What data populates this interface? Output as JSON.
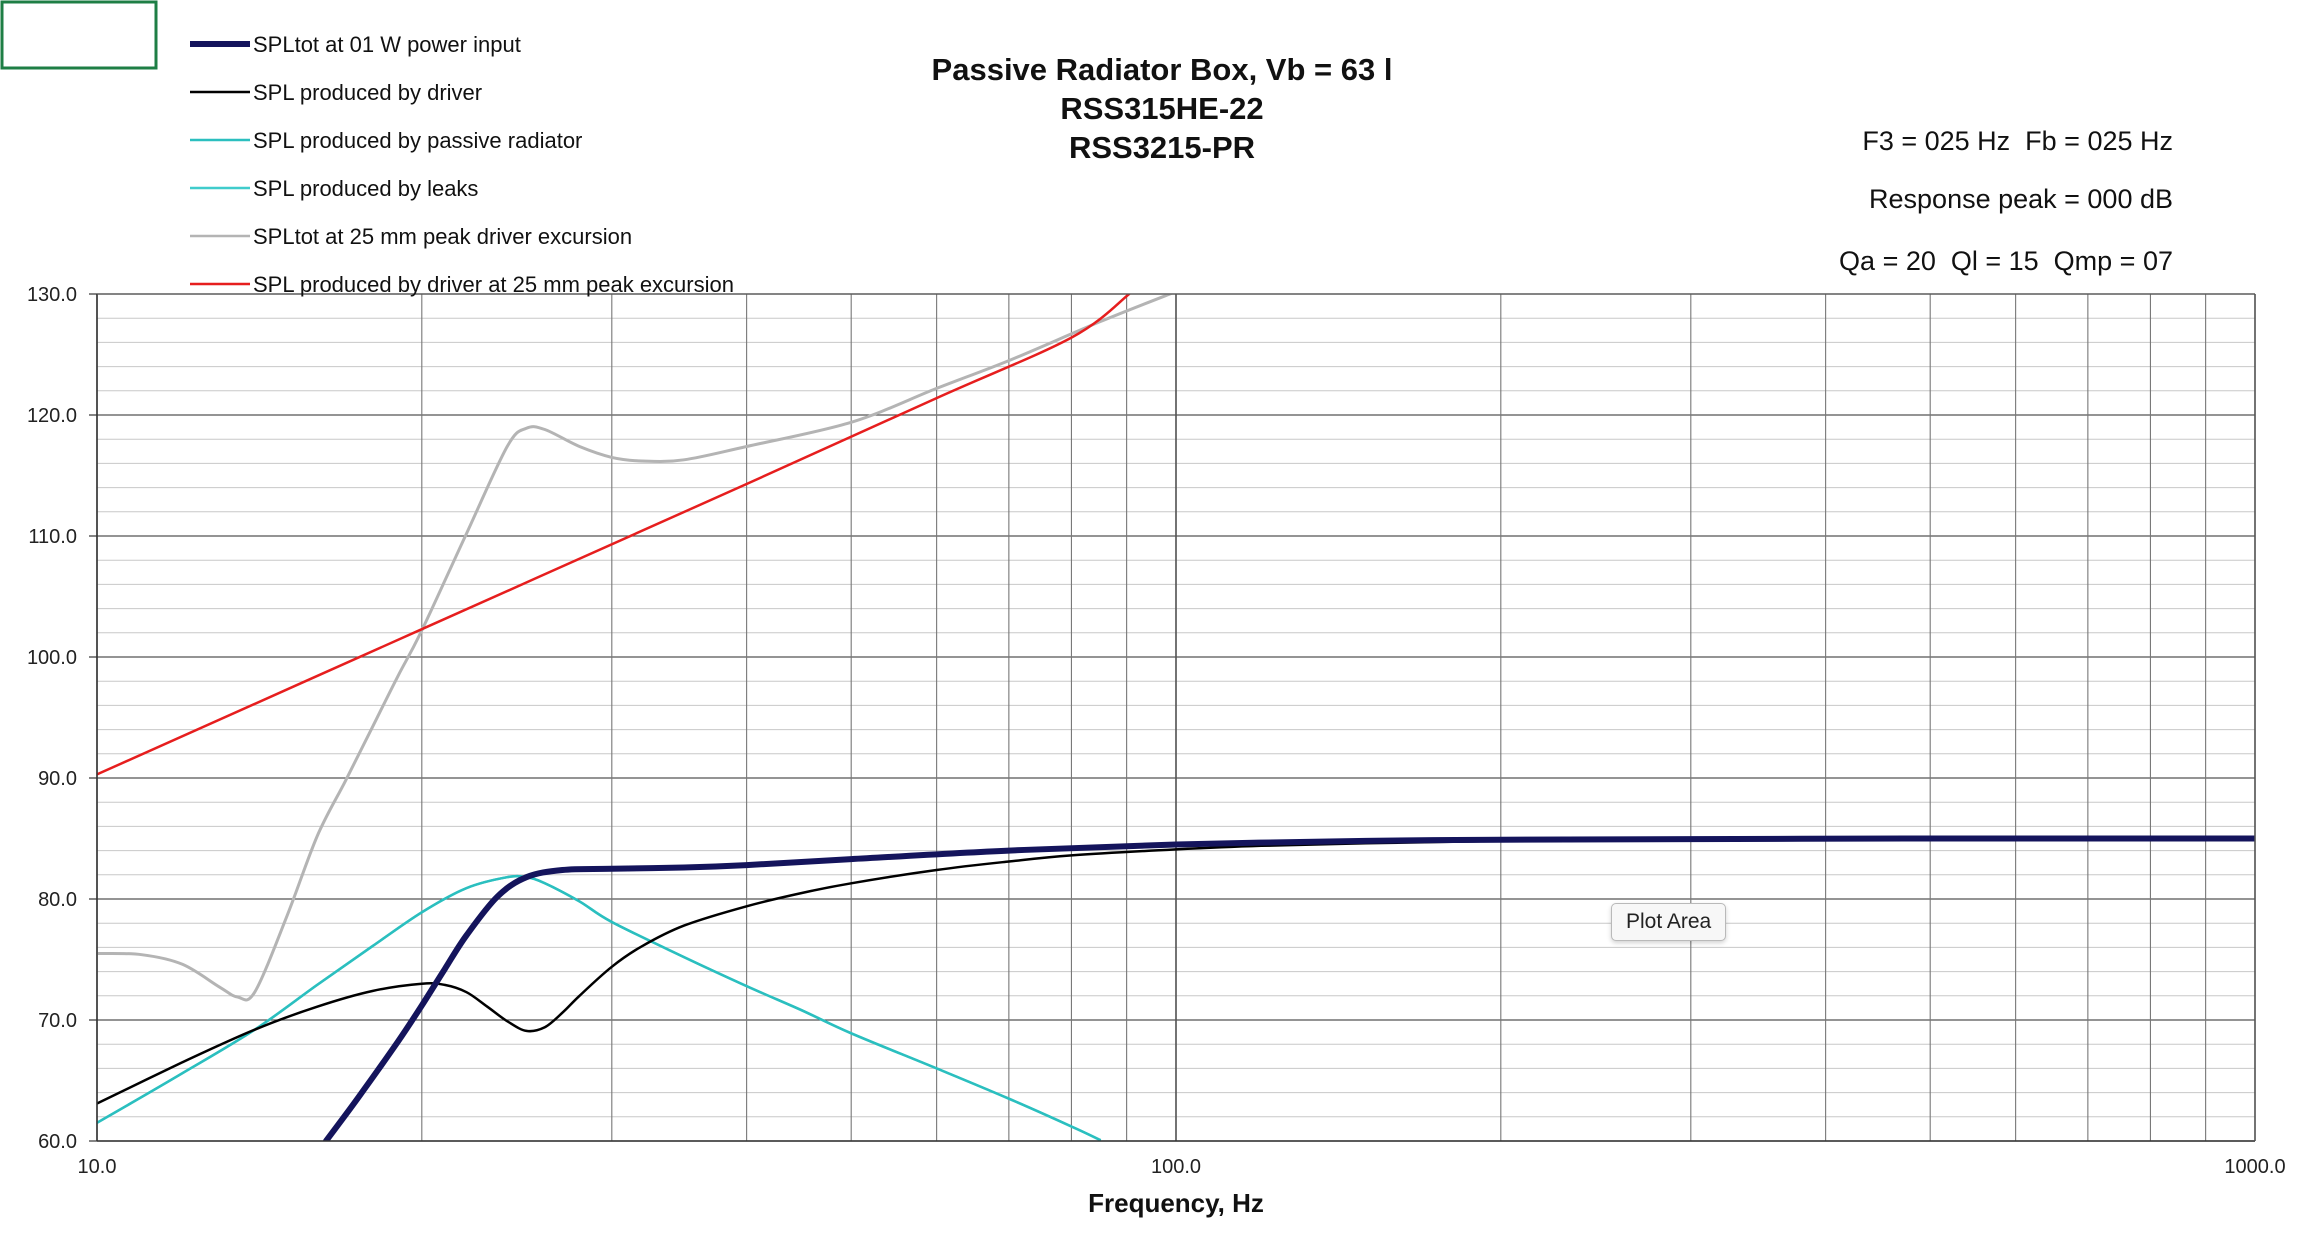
{
  "chart_data": {
    "type": "line",
    "title_lines": [
      "Passive Radiator Box, Vb = 63 l",
      "RSS315HE-22",
      "RSS3215-PR"
    ],
    "xlabel": "Frequency, Hz",
    "ylabel": "",
    "x_scale": "log",
    "xlim": [
      10,
      1000
    ],
    "ylim": [
      60,
      130
    ],
    "x_ticks": [
      10,
      100,
      1000
    ],
    "x_tick_labels": [
      "10.0",
      "100.0",
      "1000.0"
    ],
    "y_ticks": [
      60,
      70,
      80,
      90,
      100,
      110,
      120,
      130
    ],
    "y_tick_labels": [
      "60.0",
      "70.0",
      "80.0",
      "90.0",
      "100.0",
      "110.0",
      "120.0",
      "130.0"
    ],
    "grid": true,
    "legend_position": "top-left",
    "annotations": [
      "F3 = 025 Hz  Fb = 025 Hz",
      "Response peak = 000 dB",
      "Qa = 20  Ql = 15  Qmp = 07"
    ],
    "series": [
      {
        "name": "SPLtot at 01 W power input",
        "color": "#14145c",
        "x": [
          16.3,
          17.5,
          19,
          20,
          21,
          22,
          23.5,
          25,
          27,
          30,
          35,
          40,
          50,
          70,
          100,
          150,
          200,
          300,
          500,
          700,
          1000
        ],
        "y": [
          60,
          63.7,
          68.2,
          71.2,
          74.2,
          77,
          80.2,
          81.8,
          82.4,
          82.5,
          82.6,
          82.8,
          83.3,
          84,
          84.5,
          84.8,
          84.9,
          84.95,
          85,
          85,
          85
        ]
      },
      {
        "name": "SPL produced by driver",
        "color": "#000000",
        "x": [
          10,
          12,
          14,
          16,
          18,
          20,
          21,
          22,
          23,
          24,
          25,
          26,
          27,
          28,
          30,
          32,
          35,
          40,
          45,
          50,
          60,
          70,
          80,
          100,
          120,
          150,
          200,
          300,
          500,
          700,
          1000
        ],
        "y": [
          63.1,
          66.5,
          69.2,
          71.1,
          72.4,
          73,
          72.9,
          72.3,
          71.1,
          69.9,
          69.1,
          69.4,
          70.6,
          72,
          74.4,
          76.1,
          77.8,
          79.4,
          80.5,
          81.3,
          82.4,
          83.1,
          83.6,
          84.1,
          84.4,
          84.6,
          84.8,
          84.9,
          85,
          85,
          85
        ]
      },
      {
        "name": "SPL produced by passive radiator",
        "color": "#2bbfbf",
        "x": [
          10,
          12,
          14,
          16,
          18,
          20,
          22,
          24,
          25,
          26,
          28,
          30,
          35,
          40,
          45,
          50,
          60,
          70,
          80,
          85
        ],
        "y": [
          61.5,
          65.6,
          69.2,
          72.9,
          76.1,
          78.9,
          80.9,
          81.8,
          81.8,
          81.3,
          79.8,
          78.1,
          75.2,
          72.8,
          70.8,
          68.9,
          66,
          63.5,
          61.2,
          60.1
        ]
      },
      {
        "name": "SPL produced by leaks",
        "color": "#40cccc",
        "x": [
          10,
          12,
          14,
          16,
          18,
          20,
          22,
          24,
          25,
          26,
          28,
          30,
          35,
          40,
          45,
          50,
          60,
          70,
          80,
          85
        ],
        "y": [
          61.5,
          65.6,
          69.2,
          72.9,
          76.1,
          78.9,
          80.9,
          81.8,
          81.8,
          81.3,
          79.8,
          78.1,
          75.2,
          72.8,
          70.8,
          68.9,
          66,
          63.5,
          61.2,
          60.1
        ]
      },
      {
        "name": "SPLtot at 25 mm peak driver excursion",
        "color": "#b4b4b4",
        "x": [
          10,
          11,
          12,
          13,
          13.5,
          14,
          15,
          16,
          17,
          18,
          19,
          20,
          22,
          24,
          25,
          26,
          28,
          30,
          32,
          35,
          40,
          50,
          60,
          70,
          85,
          100
        ],
        "y": [
          75.5,
          75.4,
          74.6,
          72.7,
          71.9,
          72.3,
          78.6,
          85.2,
          89.8,
          94.2,
          98.4,
          102.2,
          110.2,
          117.4,
          118.9,
          118.8,
          117.4,
          116.5,
          116.2,
          116.3,
          117.4,
          119.4,
          122.2,
          124.5,
          127.7,
          130.2
        ]
      },
      {
        "name": "SPL produced by driver at 25 mm peak excursion",
        "color": "#e61e1e",
        "x": [
          10,
          20,
          40,
          60,
          80,
          90.5
        ],
        "y": [
          90.3,
          102.3,
          114.3,
          121.4,
          126.4,
          130
        ]
      }
    ]
  },
  "tooltip_text": "Plot Area"
}
